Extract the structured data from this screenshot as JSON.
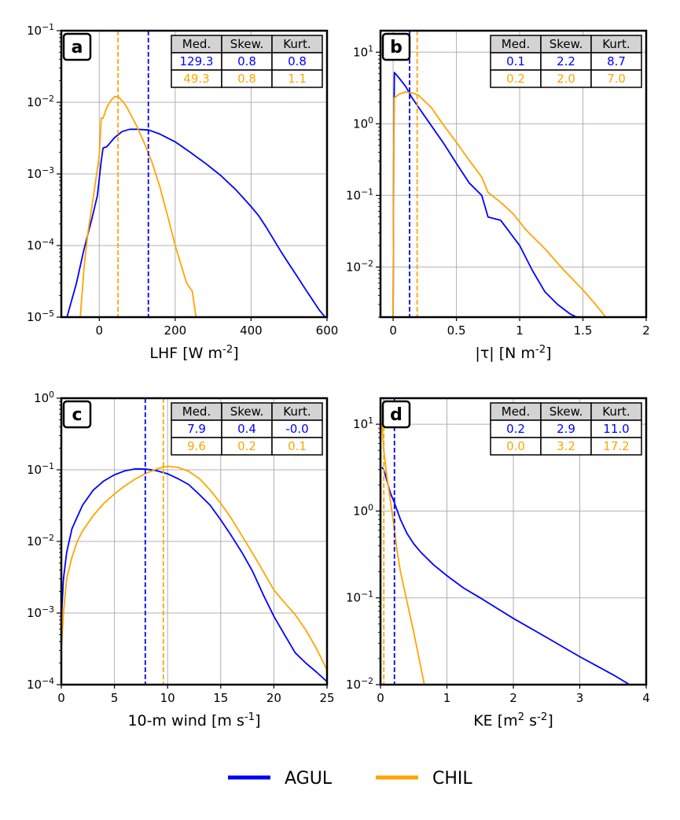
{
  "colors": {
    "agul": "#0000ff",
    "chil": "#ffa500",
    "grid": "#b0b0b0",
    "header_bg": "#d3d3d3"
  },
  "legend": [
    {
      "name": "AGUL",
      "color": "#0000ff"
    },
    {
      "name": "CHIL",
      "color": "#ffa500"
    }
  ],
  "chart_data": [
    {
      "panel": "a",
      "type": "line",
      "yscale": "log",
      "xlabel": "LHF [W m^{-2}]",
      "xlim": [
        -100,
        600
      ],
      "ylim": [
        -5,
        -1
      ],
      "xticks": [
        0,
        200,
        400,
        600
      ],
      "yticks": [
        -5,
        -4,
        -3,
        -2,
        -1
      ],
      "table": {
        "headers": [
          "Med.",
          "Skew.",
          "Kurt."
        ],
        "rows": [
          {
            "color": "#0000ff",
            "cells": [
              "129.3",
              "0.8",
              "0.8"
            ]
          },
          {
            "color": "#ffa500",
            "cells": [
              "49.3",
              "0.8",
              "1.1"
            ]
          }
        ]
      },
      "medians": [
        {
          "x": 129.3,
          "color": "#0000ff"
        },
        {
          "x": 49.3,
          "color": "#ffa500"
        }
      ],
      "series": [
        {
          "name": "AGUL",
          "color": "#0000ff",
          "points": [
            [
              -85,
              1e-05
            ],
            [
              -60,
              3e-05
            ],
            [
              -40,
              9e-05
            ],
            [
              -20,
              0.00023
            ],
            [
              -5,
              0.0005
            ],
            [
              5,
              0.0015
            ],
            [
              10,
              0.0023
            ],
            [
              20,
              0.0024
            ],
            [
              40,
              0.0032
            ],
            [
              60,
              0.0039
            ],
            [
              80,
              0.0042
            ],
            [
              100,
              0.0042
            ],
            [
              130,
              0.0041
            ],
            [
              160,
              0.0036
            ],
            [
              200,
              0.0028
            ],
            [
              240,
              0.002
            ],
            [
              280,
              0.0014
            ],
            [
              320,
              0.00095
            ],
            [
              360,
              0.0006
            ],
            [
              400,
              0.00035
            ],
            [
              420,
              0.00026
            ],
            [
              440,
              0.00018
            ],
            [
              460,
              0.00012
            ],
            [
              480,
              8e-05
            ],
            [
              500,
              5.5e-05
            ],
            [
              520,
              3.8e-05
            ],
            [
              540,
              2.6e-05
            ],
            [
              560,
              1.8e-05
            ],
            [
              580,
              1.25e-05
            ],
            [
              595,
              1e-05
            ]
          ]
        },
        {
          "name": "CHIL",
          "color": "#ffa500",
          "points": [
            [
              -50,
              1e-05
            ],
            [
              -40,
              5e-05
            ],
            [
              -30,
              0.00015
            ],
            [
              -15,
              0.0005
            ],
            [
              0,
              0.0018
            ],
            [
              5,
              0.006
            ],
            [
              10,
              0.006
            ],
            [
              20,
              0.0085
            ],
            [
              30,
              0.0105
            ],
            [
              40,
              0.012
            ],
            [
              50,
              0.012
            ],
            [
              60,
              0.0105
            ],
            [
              70,
              0.009
            ],
            [
              80,
              0.0072
            ],
            [
              100,
              0.0045
            ],
            [
              120,
              0.0026
            ],
            [
              140,
              0.0014
            ],
            [
              160,
              0.00065
            ],
            [
              180,
              0.00026
            ],
            [
              200,
              0.0001
            ],
            [
              215,
              5.5e-05
            ],
            [
              230,
              3e-05
            ],
            [
              245,
              2.3e-05
            ],
            [
              255,
              1e-05
            ]
          ]
        }
      ]
    },
    {
      "panel": "b",
      "type": "line",
      "yscale": "log",
      "xlabel": "|τ| [N m^{-2}]",
      "xlim": [
        -0.1,
        2.0
      ],
      "ylim": [
        -2.7,
        1.3
      ],
      "xticks": [
        0.0,
        0.5,
        1.0,
        1.5,
        2.0
      ],
      "yticks": [
        -2,
        -1,
        0,
        1
      ],
      "table": {
        "headers": [
          "Med.",
          "Skew.",
          "Kurt."
        ],
        "rows": [
          {
            "color": "#0000ff",
            "cells": [
              "0.1",
              "2.2",
              "8.7"
            ]
          },
          {
            "color": "#ffa500",
            "cells": [
              "0.2",
              "2.0",
              "7.0"
            ]
          }
        ]
      },
      "medians": [
        {
          "x": 0.13,
          "color": "#0000ff"
        },
        {
          "x": 0.19,
          "color": "#ffa500"
        }
      ],
      "series": [
        {
          "name": "AGUL",
          "color": "#0000ff",
          "points": [
            [
              0.0,
              0.002
            ],
            [
              0.005,
              0.5
            ],
            [
              0.01,
              5.2
            ],
            [
              0.05,
              4.3
            ],
            [
              0.1,
              3.3
            ],
            [
              0.15,
              2.3
            ],
            [
              0.2,
              1.7
            ],
            [
              0.3,
              0.95
            ],
            [
              0.4,
              0.53
            ],
            [
              0.5,
              0.28
            ],
            [
              0.6,
              0.15
            ],
            [
              0.7,
              0.1
            ],
            [
              0.75,
              0.05
            ],
            [
              0.85,
              0.045
            ],
            [
              1.0,
              0.02
            ],
            [
              1.1,
              0.009
            ],
            [
              1.2,
              0.0045
            ],
            [
              1.3,
              0.003
            ],
            [
              1.4,
              0.0022
            ],
            [
              1.45,
              0.002
            ]
          ]
        },
        {
          "name": "CHIL",
          "color": "#ffa500",
          "points": [
            [
              0.0,
              0.002
            ],
            [
              0.005,
              0.5
            ],
            [
              0.01,
              2.3
            ],
            [
              0.05,
              2.6
            ],
            [
              0.1,
              2.8
            ],
            [
              0.15,
              2.7
            ],
            [
              0.2,
              2.5
            ],
            [
              0.3,
              1.7
            ],
            [
              0.4,
              0.95
            ],
            [
              0.5,
              0.55
            ],
            [
              0.6,
              0.31
            ],
            [
              0.7,
              0.18
            ],
            [
              0.75,
              0.11
            ],
            [
              0.85,
              0.08
            ],
            [
              0.95,
              0.055
            ],
            [
              1.05,
              0.033
            ],
            [
              1.2,
              0.018
            ],
            [
              1.35,
              0.009
            ],
            [
              1.5,
              0.0048
            ],
            [
              1.6,
              0.003
            ],
            [
              1.68,
              0.002
            ]
          ]
        }
      ]
    },
    {
      "panel": "c",
      "type": "line",
      "yscale": "log",
      "xlabel": "10-m wind [m s^{-1}]",
      "xlim": [
        0,
        25
      ],
      "ylim": [
        -4,
        0
      ],
      "xticks": [
        0,
        5,
        10,
        15,
        20,
        25
      ],
      "yticks": [
        -4,
        -3,
        -2,
        -1,
        0
      ],
      "table": {
        "headers": [
          "Med.",
          "Skew.",
          "Kurt."
        ],
        "rows": [
          {
            "color": "#0000ff",
            "cells": [
              "7.9",
              "0.4",
              "-0.0"
            ]
          },
          {
            "color": "#ffa500",
            "cells": [
              "9.6",
              "0.2",
              "0.1"
            ]
          }
        ]
      },
      "medians": [
        {
          "x": 7.9,
          "color": "#0000ff"
        },
        {
          "x": 9.6,
          "color": "#ffa500"
        }
      ],
      "series": [
        {
          "name": "AGUL",
          "color": "#0000ff",
          "points": [
            [
              0.0,
              0.0008
            ],
            [
              0.2,
              0.003
            ],
            [
              0.5,
              0.007
            ],
            [
              1,
              0.015
            ],
            [
              1.5,
              0.022
            ],
            [
              2,
              0.032
            ],
            [
              3,
              0.052
            ],
            [
              4,
              0.07
            ],
            [
              5,
              0.085
            ],
            [
              6,
              0.097
            ],
            [
              7,
              0.103
            ],
            [
              8,
              0.102
            ],
            [
              9,
              0.097
            ],
            [
              10,
              0.088
            ],
            [
              11,
              0.075
            ],
            [
              12,
              0.062
            ],
            [
              13,
              0.045
            ],
            [
              14,
              0.032
            ],
            [
              15,
              0.02
            ],
            [
              16,
              0.012
            ],
            [
              17,
              0.007
            ],
            [
              18,
              0.0038
            ],
            [
              19,
              0.0018
            ],
            [
              20,
              0.0009
            ],
            [
              21,
              0.0005
            ],
            [
              22,
              0.00028
            ],
            [
              23,
              0.0002
            ],
            [
              24,
              0.00015
            ],
            [
              25,
              0.00011
            ]
          ]
        },
        {
          "name": "CHIL",
          "color": "#ffa500",
          "points": [
            [
              0.0,
              0.0003
            ],
            [
              0.2,
              0.001
            ],
            [
              0.5,
              0.003
            ],
            [
              1,
              0.006
            ],
            [
              1.5,
              0.01
            ],
            [
              2,
              0.014
            ],
            [
              3,
              0.023
            ],
            [
              4,
              0.034
            ],
            [
              5,
              0.046
            ],
            [
              6,
              0.06
            ],
            [
              7,
              0.075
            ],
            [
              8,
              0.09
            ],
            [
              9,
              0.103
            ],
            [
              10,
              0.112
            ],
            [
              11,
              0.108
            ],
            [
              12,
              0.095
            ],
            [
              13,
              0.075
            ],
            [
              14,
              0.052
            ],
            [
              15,
              0.034
            ],
            [
              16,
              0.021
            ],
            [
              17,
              0.012
            ],
            [
              18,
              0.0068
            ],
            [
              19,
              0.0038
            ],
            [
              20,
              0.0021
            ],
            [
              21,
              0.0014
            ],
            [
              22,
              0.00095
            ],
            [
              23,
              0.00058
            ],
            [
              24,
              0.00032
            ],
            [
              25,
              0.00016
            ]
          ]
        }
      ]
    },
    {
      "panel": "d",
      "type": "line",
      "yscale": "log",
      "xlabel": "KE [m^{2} s^{-2}]",
      "xlim": [
        0,
        4
      ],
      "ylim": [
        -2,
        1.3
      ],
      "xticks": [
        0,
        1,
        2,
        3,
        4
      ],
      "yticks": [
        -2,
        -1,
        0,
        1
      ],
      "table": {
        "headers": [
          "Med.",
          "Skew.",
          "Kurt."
        ],
        "rows": [
          {
            "color": "#0000ff",
            "cells": [
              "0.2",
              "2.9",
              "11.0"
            ]
          },
          {
            "color": "#ffa500",
            "cells": [
              "0.0",
              "3.2",
              "17.2"
            ]
          }
        ]
      },
      "medians": [
        {
          "x": 0.21,
          "color": "#0000ff"
        },
        {
          "x": 0.05,
          "color": "#ffa500"
        }
      ],
      "series": [
        {
          "name": "AGUL",
          "color": "#0000ff",
          "points": [
            [
              0.02,
              3.2
            ],
            [
              0.05,
              3.0
            ],
            [
              0.1,
              2.2
            ],
            [
              0.15,
              1.6
            ],
            [
              0.2,
              1.3
            ],
            [
              0.3,
              0.8
            ],
            [
              0.4,
              0.55
            ],
            [
              0.5,
              0.42
            ],
            [
              0.6,
              0.34
            ],
            [
              0.8,
              0.24
            ],
            [
              1.0,
              0.18
            ],
            [
              1.25,
              0.13
            ],
            [
              1.5,
              0.1
            ],
            [
              2.0,
              0.058
            ],
            [
              2.5,
              0.035
            ],
            [
              3.0,
              0.021
            ],
            [
              3.5,
              0.013
            ],
            [
              3.75,
              0.01
            ]
          ]
        },
        {
          "name": "CHIL",
          "color": "#ffa500",
          "points": [
            [
              0.02,
              10.5
            ],
            [
              0.05,
              5.0
            ],
            [
              0.1,
              2.4
            ],
            [
              0.15,
              1.3
            ],
            [
              0.2,
              0.7
            ],
            [
              0.25,
              0.35
            ],
            [
              0.3,
              0.2
            ],
            [
              0.4,
              0.09
            ],
            [
              0.5,
              0.04
            ],
            [
              0.6,
              0.017
            ],
            [
              0.66,
              0.01
            ]
          ]
        }
      ]
    }
  ]
}
